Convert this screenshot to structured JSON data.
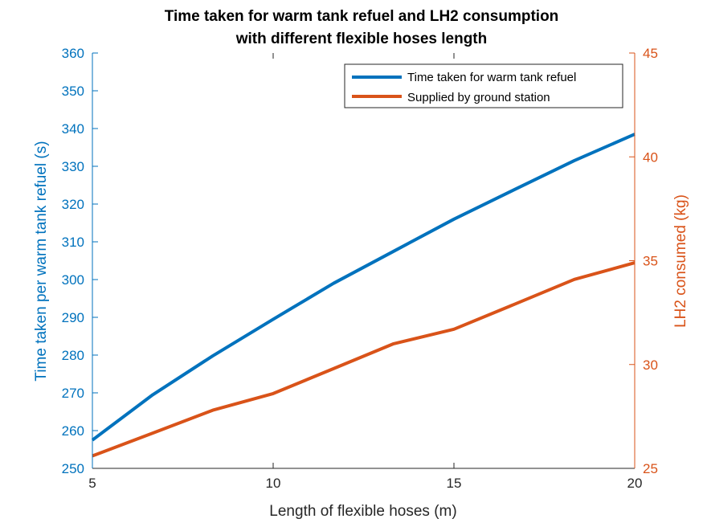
{
  "chart_data": {
    "type": "line",
    "title": [
      "Time taken for warm tank refuel and LH2 consumption",
      "with different flexible hoses length"
    ],
    "xlabel": "Length of flexible hoses (m)",
    "ylabel_left": "Time taken per warm tank refuel (s)",
    "ylabel_right": "LH2 consumed (kg)",
    "xlim": [
      5,
      20
    ],
    "ylim_left": [
      250,
      360
    ],
    "ylim_right": [
      25,
      45
    ],
    "xticks": [
      5,
      10,
      15,
      20
    ],
    "yticks_left": [
      250,
      260,
      270,
      280,
      290,
      300,
      310,
      320,
      330,
      340,
      350,
      360
    ],
    "yticks_right": [
      25,
      30,
      35,
      40,
      45
    ],
    "grid": false,
    "legend_position": "top-right",
    "colors": {
      "left": "#0072BD",
      "right": "#D95319"
    },
    "series": [
      {
        "name": "Time taken for warm tank refuel",
        "axis": "left",
        "x": [
          5,
          6.67,
          8.33,
          10,
          11.67,
          13.33,
          15,
          16.67,
          18.33,
          20
        ],
        "values": [
          257.5,
          269.5,
          279.8,
          289.5,
          299,
          307.5,
          316,
          323.8,
          331.5,
          338.5
        ]
      },
      {
        "name": "Supplied by ground station",
        "axis": "right",
        "x": [
          5,
          6.67,
          8.33,
          10,
          11.67,
          13.33,
          15,
          16.67,
          18.33,
          20
        ],
        "values": [
          25.6,
          26.7,
          27.8,
          28.6,
          29.8,
          31.0,
          31.7,
          32.9,
          34.1,
          34.9
        ]
      }
    ]
  }
}
